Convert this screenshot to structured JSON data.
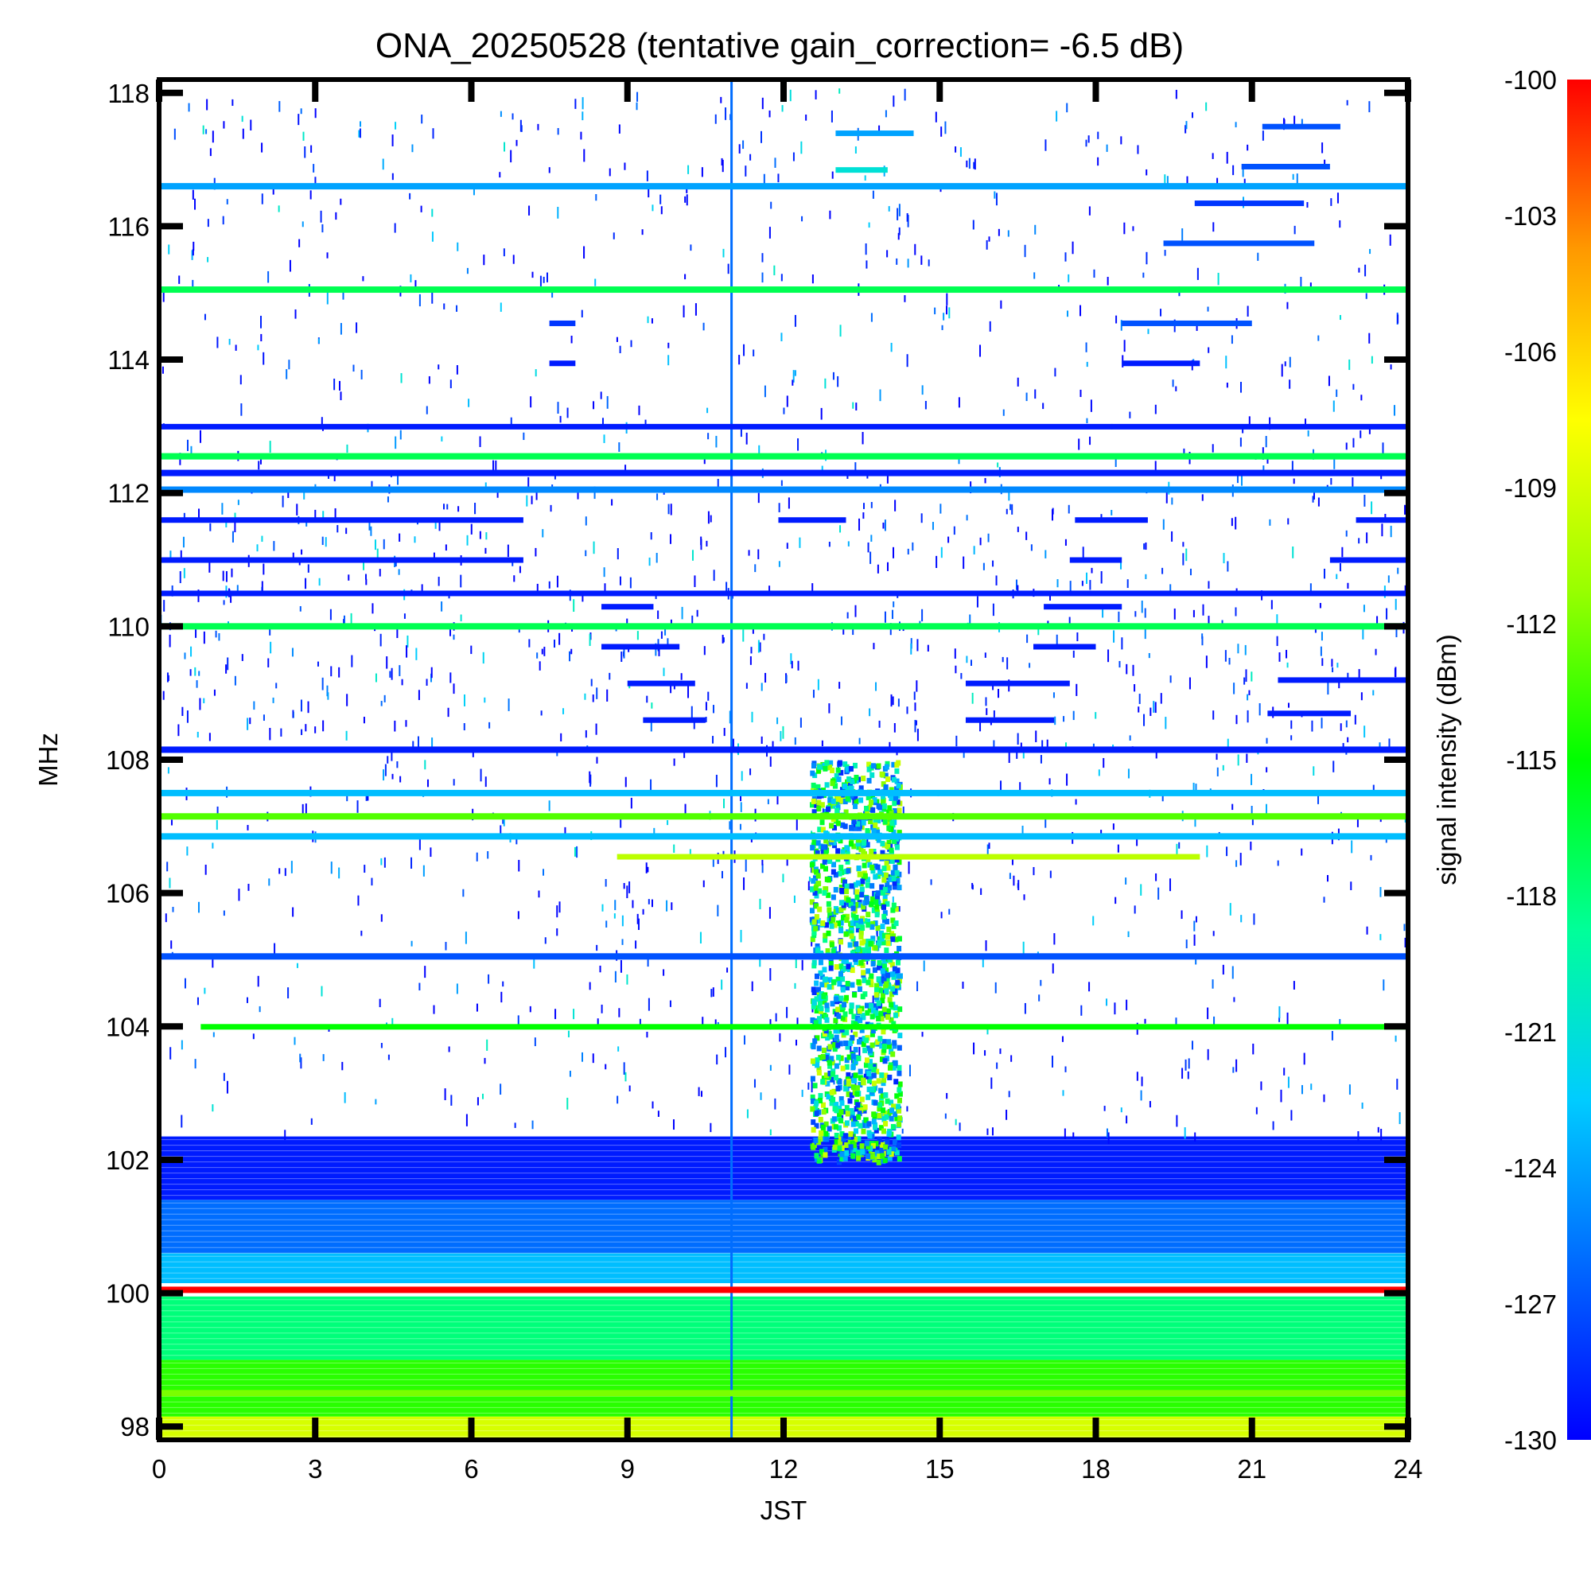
{
  "chart_data": {
    "type": "heatmap",
    "title": "ONA_20250528 (tentative gain_correction= -6.5 dB)",
    "xlabel": "JST",
    "ylabel": "MHz",
    "colorbar_label": "signal intensity (dBm)",
    "xlim": [
      0,
      24
    ],
    "ylim": [
      97.8,
      118.2
    ],
    "clim": [
      -130,
      -100
    ],
    "x_ticks": [
      "0",
      "3",
      "6",
      "9",
      "12",
      "15",
      "18",
      "21",
      "24"
    ],
    "y_ticks": [
      "98",
      "100",
      "102",
      "104",
      "106",
      "108",
      "110",
      "112",
      "114",
      "116",
      "118"
    ],
    "colorbar_ticks": [
      "-100",
      "-103",
      "-106",
      "-109",
      "-112",
      "-115",
      "-118",
      "-121",
      "-124",
      "-127",
      "-130"
    ],
    "colormap": [
      "#0000ff",
      "#0066ff",
      "#00ccff",
      "#00ff99",
      "#00ff00",
      "#99ff00",
      "#ffff00",
      "#ff9900",
      "#ff0000"
    ],
    "continuous_bands": [
      {
        "freq": 116.6,
        "dbm": -124
      },
      {
        "freq": 115.05,
        "dbm": -117
      },
      {
        "freq": 112.55,
        "dbm": -117
      },
      {
        "freq": 112.3,
        "dbm": -129
      },
      {
        "freq": 112.05,
        "dbm": -125
      },
      {
        "freq": 110.0,
        "dbm": -117
      },
      {
        "freq": 108.15,
        "dbm": -129
      },
      {
        "freq": 107.5,
        "dbm": -123
      },
      {
        "freq": 107.15,
        "dbm": -113
      },
      {
        "freq": 106.85,
        "dbm": -123
      },
      {
        "freq": 105.05,
        "dbm": -127
      },
      {
        "freq": 100.05,
        "dbm": -100
      },
      {
        "freq": 98.5,
        "dbm": -112
      }
    ],
    "segments": [
      {
        "freq": 111.6,
        "t0": 0,
        "t1": 7.0,
        "dbm": -129
      },
      {
        "freq": 111.0,
        "t0": 0,
        "t1": 7.0,
        "dbm": -129
      },
      {
        "freq": 110.5,
        "t0": 0,
        "t1": 24,
        "dbm": -129
      },
      {
        "freq": 109.7,
        "t0": 8.5,
        "t1": 10.0,
        "dbm": -129
      },
      {
        "freq": 109.15,
        "t0": 9.0,
        "t1": 10.3,
        "dbm": -129
      },
      {
        "freq": 108.6,
        "t0": 9.3,
        "t1": 10.5,
        "dbm": -129
      },
      {
        "freq": 109.7,
        "t0": 16.8,
        "t1": 18.0,
        "dbm": -129
      },
      {
        "freq": 109.15,
        "t0": 15.5,
        "t1": 17.5,
        "dbm": -129
      },
      {
        "freq": 108.6,
        "t0": 15.5,
        "t1": 17.2,
        "dbm": -129
      },
      {
        "freq": 109.2,
        "t0": 21.5,
        "t1": 24,
        "dbm": -129
      },
      {
        "freq": 108.7,
        "t0": 21.3,
        "t1": 22.9,
        "dbm": -129
      },
      {
        "freq": 113.0,
        "t0": 0,
        "t1": 24,
        "dbm": -129
      },
      {
        "freq": 113.95,
        "t0": 7.5,
        "t1": 8.0,
        "dbm": -129
      },
      {
        "freq": 113.95,
        "t0": 18.5,
        "t1": 20.0,
        "dbm": -129
      },
      {
        "freq": 114.55,
        "t0": 7.5,
        "t1": 8.0,
        "dbm": -128
      },
      {
        "freq": 114.55,
        "t0": 18.5,
        "t1": 21.0,
        "dbm": -127
      },
      {
        "freq": 115.75,
        "t0": 19.3,
        "t1": 22.2,
        "dbm": -127
      },
      {
        "freq": 116.35,
        "t0": 19.9,
        "t1": 22.0,
        "dbm": -128
      },
      {
        "freq": 117.5,
        "t0": 21.2,
        "t1": 22.7,
        "dbm": -127
      },
      {
        "freq": 116.9,
        "t0": 20.8,
        "t1": 22.5,
        "dbm": -127
      },
      {
        "freq": 117.4,
        "t0": 13.0,
        "t1": 14.5,
        "dbm": -124
      },
      {
        "freq": 116.85,
        "t0": 13.0,
        "t1": 14.0,
        "dbm": -121
      },
      {
        "freq": 111.6,
        "t0": 11.9,
        "t1": 13.2,
        "dbm": -129
      },
      {
        "freq": 111.6,
        "t0": 17.6,
        "t1": 19.0,
        "dbm": -129
      },
      {
        "freq": 111.6,
        "t0": 23.0,
        "t1": 24,
        "dbm": -129
      },
      {
        "freq": 111.0,
        "t0": 22.5,
        "t1": 24,
        "dbm": -129
      },
      {
        "freq": 111.0,
        "t0": 17.5,
        "t1": 18.5,
        "dbm": -129
      },
      {
        "freq": 110.3,
        "t0": 8.5,
        "t1": 9.5,
        "dbm": -129
      },
      {
        "freq": 110.3,
        "t0": 17.0,
        "t1": 18.5,
        "dbm": -129
      },
      {
        "freq": 104.0,
        "t0": 0.8,
        "t1": 24,
        "dbm": -115
      },
      {
        "freq": 106.55,
        "t0": 8.8,
        "t1": 20.0,
        "dbm": -110
      }
    ],
    "noise_floor": [
      {
        "f0": 97.8,
        "f1": 98.15,
        "dbm": -109
      },
      {
        "f0": 98.15,
        "f1": 99.0,
        "dbm": -114
      },
      {
        "f0": 99.0,
        "f1": 99.95,
        "dbm": -118
      },
      {
        "f0": 100.15,
        "f1": 100.6,
        "dbm": -123
      },
      {
        "f0": 100.6,
        "f1": 101.4,
        "dbm": -126
      },
      {
        "f0": 101.4,
        "f1": 102.35,
        "dbm": -129
      }
    ],
    "burst_region": {
      "t0": 12.5,
      "t1": 14.2,
      "f0": 102.0,
      "f1": 108.0
    }
  }
}
